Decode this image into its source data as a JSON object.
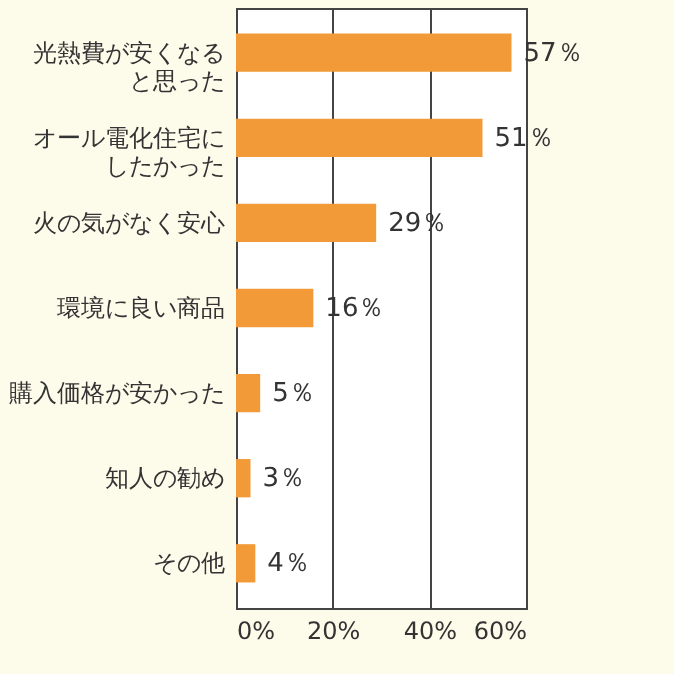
{
  "chart_data": {
    "type": "bar",
    "orientation": "horizontal",
    "categories": [
      "光熱費が安くなると思った",
      "オール電化住宅にしたかった",
      "火の気がなく安心",
      "環境に良い商品",
      "購入価格が安かった",
      "知人の勧め",
      "その他"
    ],
    "values": [
      57,
      51,
      29,
      16,
      5,
      3,
      4
    ],
    "value_labels": [
      "57％",
      "51％",
      "29％",
      "16％",
      "5％",
      "3％",
      "4％"
    ],
    "color": "#f29a38",
    "xlim": [
      0,
      60
    ],
    "xticks": [
      {
        "value": 0,
        "label": "0%"
      },
      {
        "value": 20,
        "label": "20%"
      },
      {
        "value": 40,
        "label": "40%"
      },
      {
        "value": 60,
        "label": "60%"
      }
    ],
    "grid": "x"
  }
}
